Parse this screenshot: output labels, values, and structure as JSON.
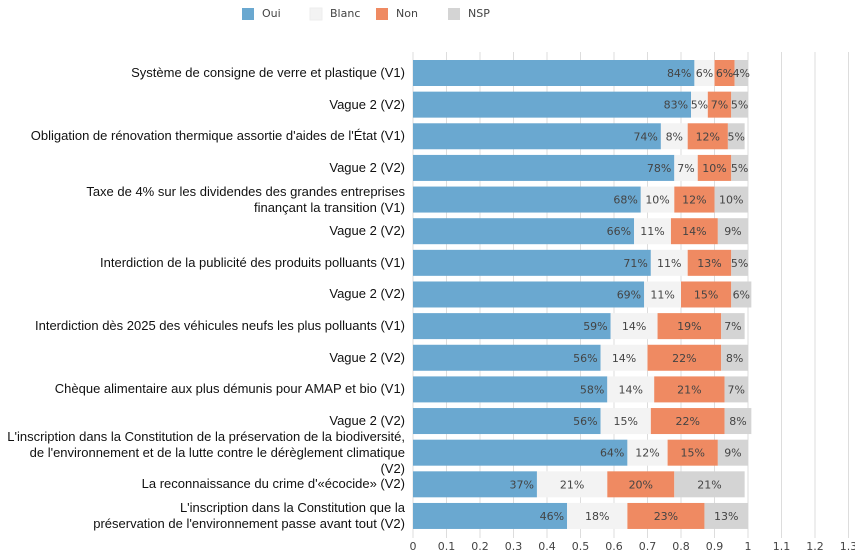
{
  "chart_data": {
    "type": "stacked_barh",
    "categories": [
      "Système de consigne de verre et plastique (V1)",
      "Vague 2 (V2)",
      "Obligation de rénovation thermique assortie d'aides de l'État (V1)",
      "Vague 2 (V2)",
      "Taxe de 4% sur les dividendes des grandes entreprises\nfinançant la transition (V1)",
      "Vague 2 (V2)",
      "Interdiction de la publicité des produits polluants (V1)",
      "Vague 2 (V2)",
      "Interdiction dès 2025 des véhicules neufs les plus polluants (V1)",
      "Vague 2 (V2)",
      "Chèque alimentaire aux plus démunis pour AMAP et bio (V1)",
      "Vague 2 (V2)",
      "L'inscription dans la Constitution de la préservation de la biodiversité,\nde l'environnement et de la lutte contre le dérèglement climatique (V2)",
      "La reconnaissance du crime d'«écocide» (V2)",
      "L'inscription dans la Constitution que la\npréservation de l'environnement passe avant tout (V2)"
    ],
    "series": [
      {
        "name": "Oui",
        "color": "#6aa8d0",
        "values": [
          0.84,
          0.83,
          0.74,
          0.78,
          0.68,
          0.66,
          0.71,
          0.69,
          0.59,
          0.56,
          0.58,
          0.56,
          0.64,
          0.37,
          0.46
        ],
        "value_labels": [
          "84%",
          "83%",
          "74%",
          "78%",
          "68%",
          "66%",
          "71%",
          "69%",
          "59%",
          "56%",
          "58%",
          "56%",
          "64%",
          "37%",
          "46%"
        ]
      },
      {
        "name": "Blanc",
        "color": "#f3f3f3",
        "values": [
          0.06,
          0.05,
          0.08,
          0.07,
          0.1,
          0.11,
          0.11,
          0.11,
          0.14,
          0.14,
          0.14,
          0.15,
          0.12,
          0.21,
          0.18
        ],
        "value_labels": [
          "6%",
          "5%",
          "8%",
          "7%",
          "10%",
          "11%",
          "11%",
          "11%",
          "14%",
          "14%",
          "14%",
          "15%",
          "12%",
          "21%",
          "18%"
        ]
      },
      {
        "name": "Non",
        "color": "#ef8a62",
        "values": [
          0.06,
          0.07,
          0.12,
          0.1,
          0.12,
          0.14,
          0.13,
          0.15,
          0.19,
          0.22,
          0.21,
          0.22,
          0.15,
          0.2,
          0.23
        ],
        "value_labels": [
          "6%",
          "7%",
          "12%",
          "10%",
          "12%",
          "14%",
          "13%",
          "15%",
          "19%",
          "22%",
          "21%",
          "22%",
          "15%",
          "20%",
          "23%"
        ]
      },
      {
        "name": "NSP",
        "color": "#d4d4d4",
        "values": [
          0.04,
          0.05,
          0.05,
          0.05,
          0.1,
          0.09,
          0.05,
          0.06,
          0.07,
          0.08,
          0.07,
          0.08,
          0.09,
          0.21,
          0.13
        ],
        "value_labels": [
          "4%",
          "5%",
          "5%",
          "5%",
          "10%",
          "9%",
          "5%",
          "6%",
          "7%",
          "8%",
          "7%",
          "8%",
          "9%",
          "21%",
          "13%"
        ]
      }
    ],
    "xlim": [
      0,
      1.3
    ],
    "xticks": [
      0,
      0.1,
      0.2,
      0.3,
      0.4,
      0.5,
      0.6,
      0.7,
      0.8,
      0.9,
      1,
      1.1,
      1.2,
      1.3
    ],
    "grid": true,
    "legend": "top"
  }
}
